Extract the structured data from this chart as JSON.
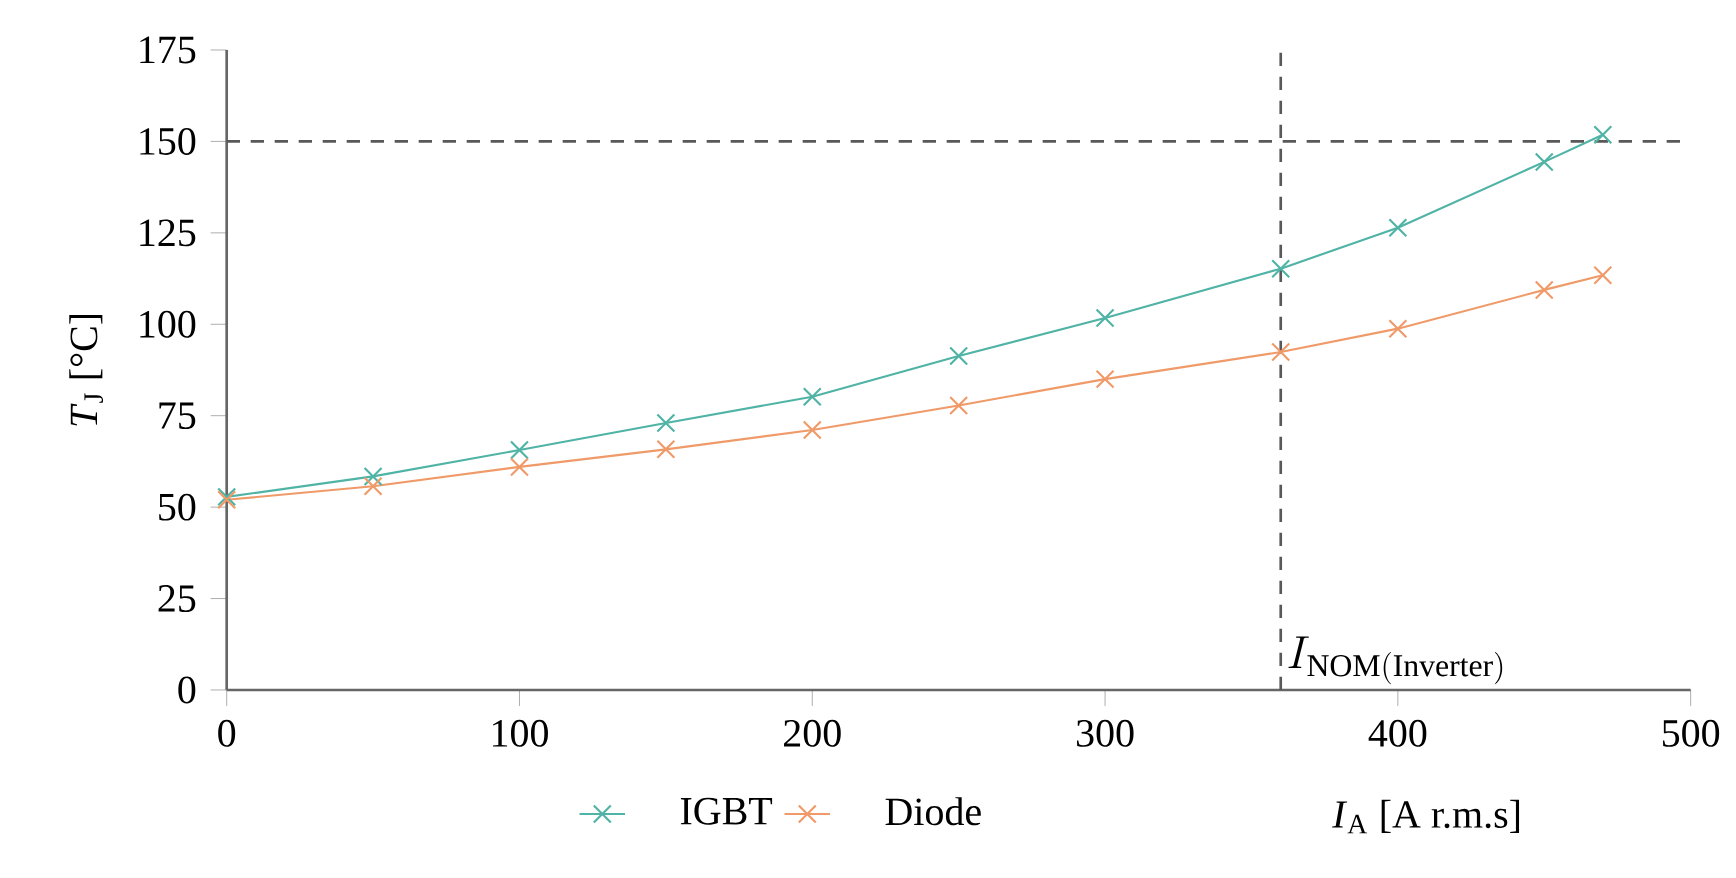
{
  "chart_data": {
    "type": "line",
    "xlabel": "*I*$_{A}$ [A r.m.s]",
    "ylabel": "*T*$_{J}$ [°C]",
    "x": [
      0,
      50,
      100,
      150,
      200,
      250,
      300,
      360,
      400,
      450,
      470
    ],
    "series": [
      {
        "name": "IGBT",
        "color": "#4fb3a5",
        "values": [
          52.8,
          58.4,
          65.6,
          73,
          80.2,
          91.3,
          101.7,
          115.2,
          126.4,
          144.4,
          151.8
        ]
      },
      {
        "name": "Diode",
        "color": "#ef9a68",
        "values": [
          52,
          55.7,
          61,
          65.8,
          71.1,
          77.8,
          85,
          92.4,
          98.8,
          109.4,
          113.4
        ]
      }
    ],
    "xlim": [
      0,
      500
    ],
    "xticks": [
      0,
      100,
      200,
      300,
      400,
      500
    ],
    "ylim": [
      0,
      175
    ],
    "yticks": [
      0,
      25,
      50,
      75,
      100,
      125,
      150,
      175
    ],
    "ref_lines": [
      {
        "axis": "y",
        "value": 150,
        "color": "#595959",
        "line_style": "dashed"
      },
      {
        "axis": "x",
        "value": 360,
        "label": "I_{\\mathrm{NOM(Inverter)}}",
        "color": "#595959",
        "line_style": "dashed"
      }
    ],
    "grid": false,
    "legend": "bottom",
    "marker": "cross",
    "line_style": "solid"
  }
}
